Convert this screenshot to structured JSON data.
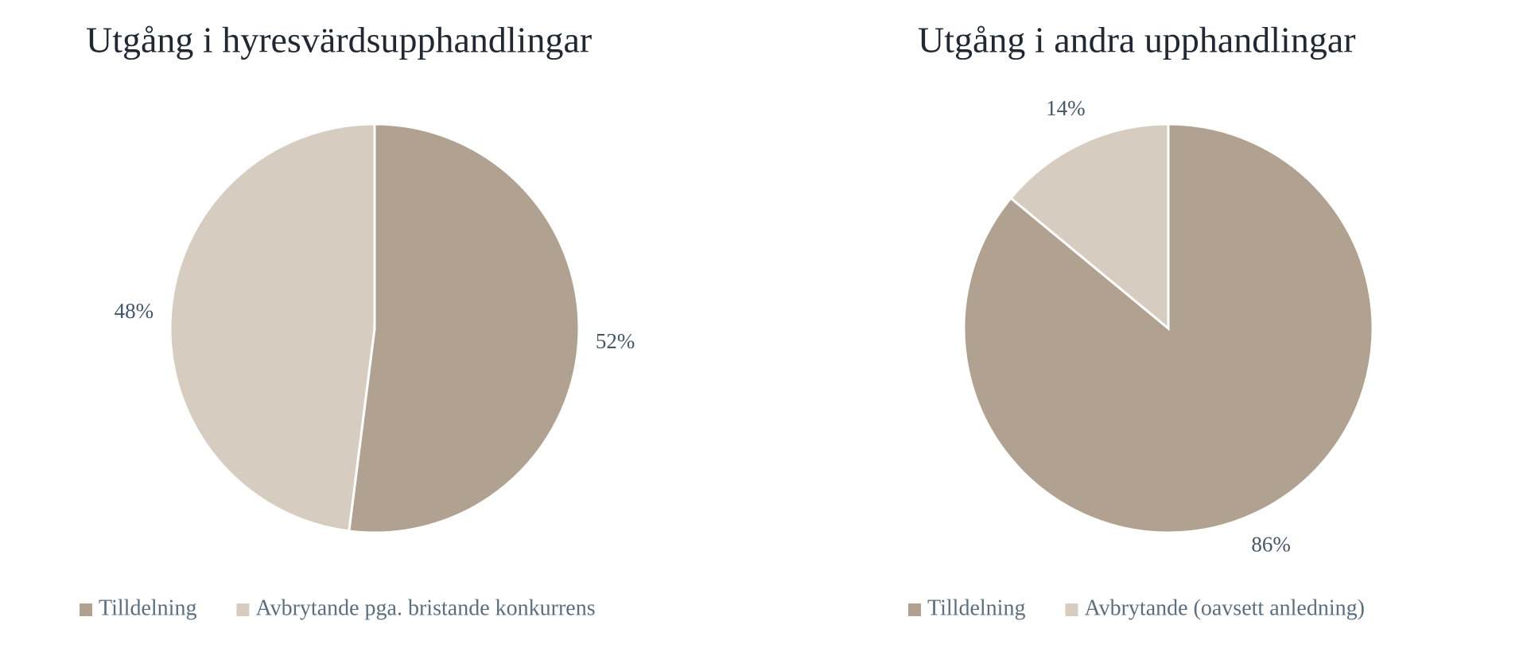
{
  "chart_data": [
    {
      "type": "pie",
      "title": "Utgång i hyresvärdsupphandlingar",
      "categories": [
        "Tilldelning",
        "Avbrytande pga. bristande konkurrens"
      ],
      "values": [
        52,
        48
      ],
      "value_labels": [
        "52%",
        "48%"
      ],
      "colors": [
        "#b0a190",
        "#d6ccc0"
      ]
    },
    {
      "type": "pie",
      "title": "Utgång i andra upphandlingar",
      "categories": [
        "Tilldelning",
        "Avbrytande (oavsett anledning)"
      ],
      "values": [
        86,
        14
      ],
      "value_labels": [
        "86%",
        "14%"
      ],
      "colors": [
        "#b0a190",
        "#d6ccc0"
      ]
    }
  ]
}
